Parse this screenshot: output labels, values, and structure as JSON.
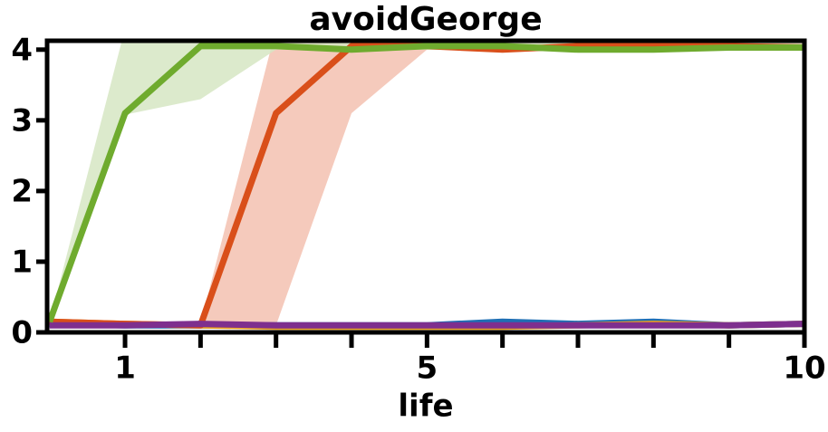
{
  "chart_data": {
    "type": "line",
    "title": "avoidGeorge",
    "xlabel": "life",
    "x": [
      0,
      1,
      2,
      3,
      4,
      5,
      6,
      7,
      8,
      9,
      10
    ],
    "xlim": [
      0,
      10
    ],
    "xticks": [
      1,
      5,
      10
    ],
    "xminorticks": [
      2,
      3,
      4,
      6,
      7,
      8,
      9
    ],
    "ylim": [
      0,
      4.1
    ],
    "yticks": [
      0,
      1,
      2,
      3,
      4
    ],
    "series": [
      {
        "color": "#1f6fb4",
        "values": [
          0.12,
          0.1,
          0.1,
          0.1,
          0.1,
          0.1,
          0.15,
          0.12,
          0.15,
          0.1,
          0.12
        ]
      },
      {
        "color": "#e8a020",
        "values": [
          0.15,
          0.12,
          0.1,
          0.08,
          0.08,
          0.08,
          0.08,
          0.1,
          0.12,
          0.1,
          0.12
        ]
      },
      {
        "color": "#d94f1a",
        "band_color": "#f3c1b0",
        "values": [
          0.15,
          0.12,
          0.1,
          3.1,
          4.05,
          4.05,
          4.0,
          4.05,
          4.05,
          4.05,
          4.03
        ],
        "lower": [
          0.15,
          0.1,
          0.1,
          0.1,
          3.1,
          4.0,
          4.0,
          4.0,
          4.0,
          4.0,
          4.0
        ],
        "upper": [
          0.15,
          0.12,
          0.12,
          4.3,
          4.3,
          4.1,
          4.1,
          4.1,
          4.1,
          4.1,
          4.1
        ]
      },
      {
        "color": "#7e2f8e",
        "values": [
          0.1,
          0.1,
          0.12,
          0.1,
          0.1,
          0.1,
          0.1,
          0.1,
          0.1,
          0.1,
          0.12
        ]
      },
      {
        "color": "#6fab2e",
        "band_color": "#d6e6c3",
        "values": [
          0.15,
          3.1,
          4.05,
          4.05,
          4.0,
          4.05,
          4.05,
          4.0,
          4.0,
          4.03,
          4.03
        ],
        "lower": [
          0.15,
          3.08,
          3.3,
          4.0,
          4.0,
          4.0,
          4.0,
          3.98,
          3.98,
          4.0,
          4.0
        ],
        "upper": [
          0.15,
          4.3,
          4.3,
          4.1,
          4.1,
          4.1,
          4.1,
          4.1,
          4.1,
          4.1,
          4.1
        ]
      }
    ]
  }
}
